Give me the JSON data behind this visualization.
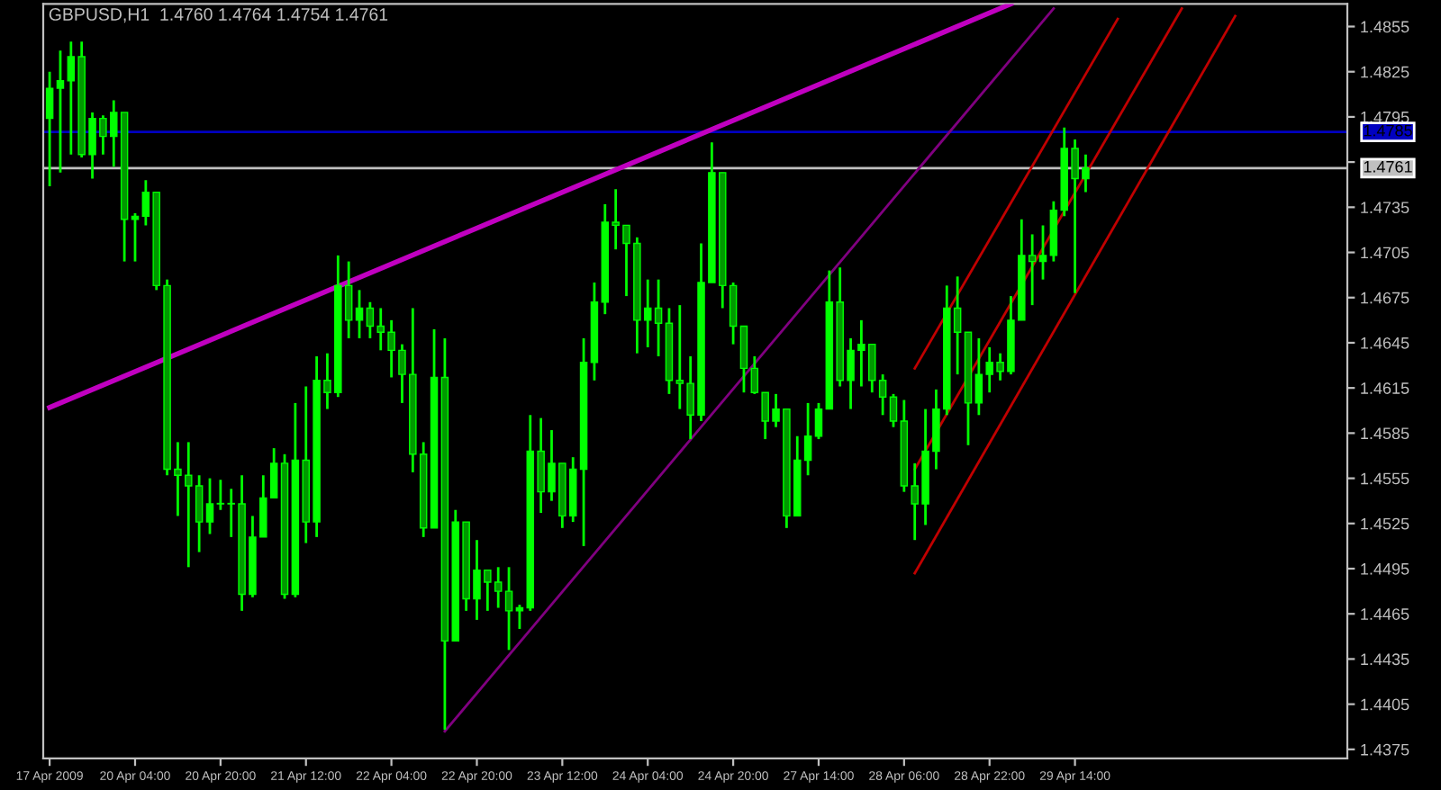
{
  "chart_data": {
    "type": "candlestick",
    "title": "GBPUSD,H1  1.4760 1.4764 1.4754 1.4761",
    "categories": [
      "17 Apr 2009",
      null,
      null,
      null,
      null,
      null,
      null,
      null,
      "20 Apr 04:00",
      null,
      null,
      null,
      null,
      null,
      null,
      null,
      "20 Apr 20:00",
      null,
      null,
      null,
      null,
      null,
      null,
      null,
      "21 Apr 12:00",
      null,
      null,
      null,
      null,
      null,
      null,
      null,
      "22 Apr 04:00",
      null,
      null,
      null,
      null,
      null,
      null,
      null,
      "22 Apr 20:00",
      null,
      null,
      null,
      null,
      null,
      null,
      null,
      "23 Apr 12:00",
      null,
      null,
      null,
      null,
      null,
      null,
      null,
      "24 Apr 04:00",
      null,
      null,
      null,
      null,
      null,
      null,
      null,
      "24 Apr 20:00",
      null,
      null,
      null,
      null,
      null,
      null,
      null,
      "27 Apr 14:00",
      null,
      null,
      null,
      null,
      null,
      null,
      null,
      "28 Apr 06:00",
      null,
      null,
      null,
      null,
      null,
      null,
      null,
      "28 Apr 22:00",
      null,
      null,
      null,
      null,
      null,
      null,
      null,
      "29 Apr 14:00",
      null,
      null,
      null,
      null,
      null,
      null,
      null,
      null,
      null,
      null,
      null,
      null,
      null,
      null,
      null,
      null,
      null,
      null,
      null,
      null,
      null,
      null,
      null,
      null,
      null
    ],
    "ylim": [
      1.4369,
      1.487
    ],
    "yticks": [
      {
        "value": 1.4375,
        "label": "1.4375"
      },
      {
        "value": 1.4405,
        "label": "1.4405"
      },
      {
        "value": 1.4435,
        "label": "1.4435"
      },
      {
        "value": 1.4465,
        "label": "1.4465"
      },
      {
        "value": 1.4495,
        "label": "1.4495"
      },
      {
        "value": 1.4525,
        "label": "1.4525"
      },
      {
        "value": 1.4555,
        "label": "1.4555"
      },
      {
        "value": 1.4585,
        "label": "1.4585"
      },
      {
        "value": 1.4615,
        "label": "1.4615"
      },
      {
        "value": 1.4645,
        "label": "1.4645"
      },
      {
        "value": 1.4675,
        "label": "1.4675"
      },
      {
        "value": 1.4705,
        "label": "1.4705"
      },
      {
        "value": 1.4735,
        "label": "1.4735"
      },
      {
        "value": 1.4765,
        "label": null
      },
      {
        "value": 1.4795,
        "label": "1.4795"
      },
      {
        "value": 1.4825,
        "label": "1.4825"
      },
      {
        "value": 1.4855,
        "label": "1.4855"
      }
    ],
    "grid": false,
    "legend": false,
    "ref_lines": [
      {
        "axis": "y",
        "value": 1.4785,
        "label": "1.4785",
        "color": "#0000c0"
      },
      {
        "axis": "y",
        "value": 1.4761,
        "label": "1.4761",
        "color": "#c0c0c0"
      }
    ],
    "series": [
      {
        "color": "#00ff00",
        "ohlc": [
          [
            1.4794,
            1.4825,
            1.4749,
            1.4814
          ],
          [
            1.4814,
            1.4839,
            1.4758,
            1.4819
          ],
          [
            1.4819,
            1.4845,
            1.477,
            1.4835
          ],
          [
            1.4835,
            1.4845,
            1.4768,
            1.477
          ],
          [
            1.477,
            1.4798,
            1.4754,
            1.4794
          ],
          [
            1.4794,
            1.4796,
            1.477,
            1.4782
          ],
          [
            1.4782,
            1.4806,
            1.4762,
            1.4798
          ],
          [
            1.4798,
            1.4798,
            1.4699,
            1.4727
          ],
          [
            1.4727,
            1.4731,
            1.4699,
            1.4729
          ],
          [
            1.4729,
            1.4753,
            1.4723,
            1.4745
          ],
          [
            1.4745,
            1.4745,
            1.468,
            1.4683
          ],
          [
            1.4683,
            1.4687,
            1.4557,
            1.4561
          ],
          [
            1.4561,
            1.4579,
            1.453,
            1.4557
          ],
          [
            1.4557,
            1.4579,
            1.4496,
            1.455
          ],
          [
            1.455,
            1.4557,
            1.4506,
            1.4526
          ],
          [
            1.4526,
            1.4555,
            1.4518,
            1.4538
          ],
          [
            1.4538,
            1.4554,
            1.4534,
            1.4538
          ],
          [
            1.4538,
            1.4548,
            1.4516,
            1.4538
          ],
          [
            1.4538,
            1.4557,
            1.4467,
            1.4478
          ],
          [
            1.4478,
            1.453,
            1.4476,
            1.4516
          ],
          [
            1.4516,
            1.4557,
            1.4516,
            1.4542
          ],
          [
            1.4542,
            1.4575,
            1.4542,
            1.4565
          ],
          [
            1.4565,
            1.4571,
            1.4475,
            1.4478
          ],
          [
            1.4478,
            1.4605,
            1.4476,
            1.4567
          ],
          [
            1.4567,
            1.4616,
            1.4512,
            1.4526
          ],
          [
            1.4526,
            1.4636,
            1.4516,
            1.462
          ],
          [
            1.462,
            1.4638,
            1.4601,
            1.4612
          ],
          [
            1.4612,
            1.4703,
            1.4609,
            1.4683
          ],
          [
            1.4683,
            1.4699,
            1.4648,
            1.466
          ],
          [
            1.466,
            1.468,
            1.4648,
            1.4668
          ],
          [
            1.4668,
            1.4672,
            1.4648,
            1.4656
          ],
          [
            1.4656,
            1.4668,
            1.464,
            1.4652
          ],
          [
            1.4652,
            1.466,
            1.4622,
            1.464
          ],
          [
            1.464,
            1.4644,
            1.4605,
            1.4624
          ],
          [
            1.4624,
            1.4668,
            1.4559,
            1.4571
          ],
          [
            1.4571,
            1.4579,
            1.4516,
            1.4522
          ],
          [
            1.4522,
            1.4654,
            1.4522,
            1.4622
          ],
          [
            1.4622,
            1.4648,
            1.4388,
            1.4447
          ],
          [
            1.4447,
            1.4534,
            1.4447,
            1.4526
          ],
          [
            1.4526,
            1.4526,
            1.4467,
            1.4475
          ],
          [
            1.4475,
            1.4514,
            1.4461,
            1.4494
          ],
          [
            1.4494,
            1.4494,
            1.4467,
            1.4486
          ],
          [
            1.4486,
            1.4496,
            1.4469,
            1.448
          ],
          [
            1.448,
            1.4496,
            1.4441,
            1.4467
          ],
          [
            1.4467,
            1.4471,
            1.4455,
            1.4469
          ],
          [
            1.4469,
            1.4597,
            1.4467,
            1.4573
          ],
          [
            1.4573,
            1.4595,
            1.4532,
            1.4546
          ],
          [
            1.4546,
            1.4587,
            1.454,
            1.4565
          ],
          [
            1.4565,
            1.4565,
            1.4522,
            1.453
          ],
          [
            1.453,
            1.4569,
            1.4526,
            1.4561
          ],
          [
            1.4561,
            1.4648,
            1.451,
            1.4632
          ],
          [
            1.4632,
            1.4685,
            1.462,
            1.4672
          ],
          [
            1.4672,
            1.4737,
            1.4664,
            1.4725
          ],
          [
            1.4725,
            1.4747,
            1.4707,
            1.4723
          ],
          [
            1.4723,
            1.4723,
            1.4676,
            1.4711
          ],
          [
            1.4711,
            1.4715,
            1.4638,
            1.466
          ],
          [
            1.466,
            1.4687,
            1.4642,
            1.4668
          ],
          [
            1.4668,
            1.4687,
            1.4636,
            1.4658
          ],
          [
            1.4658,
            1.4668,
            1.4611,
            1.462
          ],
          [
            1.462,
            1.467,
            1.4601,
            1.4618
          ],
          [
            1.4618,
            1.4636,
            1.4581,
            1.4597
          ],
          [
            1.4597,
            1.4711,
            1.4593,
            1.4685
          ],
          [
            1.4685,
            1.4778,
            1.4685,
            1.4758
          ],
          [
            1.4758,
            1.4758,
            1.4668,
            1.4683
          ],
          [
            1.4683,
            1.4685,
            1.4644,
            1.4656
          ],
          [
            1.4656,
            1.4656,
            1.4612,
            1.4628
          ],
          [
            1.4628,
            1.4636,
            1.4611,
            1.4612
          ],
          [
            1.4612,
            1.4612,
            1.4581,
            1.4593
          ],
          [
            1.4593,
            1.4611,
            1.4589,
            1.4601
          ],
          [
            1.4601,
            1.4601,
            1.4522,
            1.453
          ],
          [
            1.453,
            1.4583,
            1.453,
            1.4567
          ],
          [
            1.4567,
            1.4605,
            1.4557,
            1.4583
          ],
          [
            1.4583,
            1.4605,
            1.4581,
            1.4601
          ],
          [
            1.4601,
            1.4693,
            1.4601,
            1.4672
          ],
          [
            1.4672,
            1.4695,
            1.4616,
            1.462
          ],
          [
            1.462,
            1.4648,
            1.4601,
            1.464
          ],
          [
            1.464,
            1.466,
            1.4616,
            1.4644
          ],
          [
            1.4644,
            1.4644,
            1.4612,
            1.462
          ],
          [
            1.462,
            1.4624,
            1.4597,
            1.4609
          ],
          [
            1.4609,
            1.4611,
            1.4589,
            1.4593
          ],
          [
            1.4593,
            1.4607,
            1.4546,
            1.455
          ],
          [
            1.455,
            1.4565,
            1.4514,
            1.4538
          ],
          [
            1.4538,
            1.4601,
            1.4524,
            1.4573
          ],
          [
            1.4573,
            1.4614,
            1.4561,
            1.4601
          ],
          [
            1.4601,
            1.4683,
            1.4597,
            1.4668
          ],
          [
            1.4668,
            1.4689,
            1.4624,
            1.4652
          ],
          [
            1.4652,
            1.4652,
            1.4577,
            1.4605
          ],
          [
            1.4605,
            1.4648,
            1.4597,
            1.4624
          ],
          [
            1.4624,
            1.4642,
            1.4612,
            1.4632
          ],
          [
            1.4632,
            1.4638,
            1.462,
            1.4626
          ],
          [
            1.4626,
            1.4676,
            1.4624,
            1.466
          ],
          [
            1.466,
            1.4727,
            1.466,
            1.4703
          ],
          [
            1.4703,
            1.4717,
            1.467,
            1.4699
          ],
          [
            1.4699,
            1.4723,
            1.4687,
            1.4703
          ],
          [
            1.4703,
            1.4739,
            1.4699,
            1.4733
          ],
          [
            1.4733,
            1.4788,
            1.4729,
            1.4774
          ],
          [
            1.4774,
            1.478,
            1.4678,
            1.4754
          ],
          [
            1.4754,
            1.477,
            1.4745,
            1.4761
          ],
          null,
          null,
          null,
          null,
          null,
          null,
          null,
          null,
          null,
          null,
          null,
          null,
          null,
          null,
          null,
          null,
          null,
          null,
          null,
          null,
          null,
          null,
          null,
          null
        ]
      },
      {
        "type": "line",
        "color": "#c000c0",
        "values": [
          1.4602,
          null,
          null,
          null,
          null,
          null,
          null,
          null,
          null,
          null,
          null,
          null,
          null,
          null,
          null,
          null,
          null,
          null,
          null,
          null,
          null,
          null,
          null,
          null,
          null,
          null,
          null,
          null,
          null,
          null,
          null,
          null,
          null,
          null,
          null,
          null,
          null,
          null,
          null,
          null,
          null,
          null,
          null,
          null,
          null,
          null,
          null,
          null,
          null,
          null,
          null,
          null,
          null,
          null,
          null,
          null,
          null,
          null,
          null,
          null,
          null,
          null,
          null,
          null,
          null,
          null,
          null,
          null,
          null,
          null,
          null,
          null,
          null,
          null,
          null,
          null,
          null,
          null,
          null,
          null,
          null,
          null,
          null,
          null,
          null,
          null,
          null,
          null,
          null,
          null,
          1.487,
          null,
          null,
          null,
          null,
          null,
          null,
          null,
          null,
          null,
          null,
          null,
          null,
          null,
          null,
          null,
          null,
          null,
          null,
          null,
          null,
          null,
          null,
          null,
          null,
          null,
          null,
          null,
          null,
          null,
          null,
          null
        ]
      },
      {
        "type": "line",
        "color": "#800080",
        "values": [
          null,
          null,
          null,
          null,
          null,
          null,
          null,
          null,
          null,
          null,
          null,
          null,
          null,
          null,
          null,
          null,
          null,
          null,
          null,
          null,
          null,
          null,
          null,
          null,
          null,
          null,
          null,
          null,
          null,
          null,
          null,
          null,
          null,
          null,
          null,
          null,
          null,
          1.4387,
          null,
          null,
          null,
          null,
          null,
          null,
          null,
          null,
          null,
          null,
          null,
          null,
          null,
          null,
          null,
          null,
          null,
          null,
          null,
          null,
          null,
          null,
          null,
          null,
          null,
          null,
          null,
          null,
          null,
          null,
          null,
          null,
          null,
          null,
          null,
          null,
          null,
          null,
          null,
          null,
          null,
          null,
          null,
          null,
          null,
          null,
          null,
          null,
          null,
          null,
          null,
          null,
          null,
          null,
          null,
          null,
          1.4867,
          null,
          null,
          null,
          null,
          null,
          null,
          null,
          null,
          null,
          null,
          null,
          null,
          null,
          null,
          null,
          null,
          null,
          null,
          null,
          null,
          null,
          null,
          null,
          null,
          null,
          null,
          null
        ]
      },
      {
        "type": "line",
        "color": "#c00000",
        "values": [
          null,
          null,
          null,
          null,
          null,
          null,
          null,
          null,
          null,
          null,
          null,
          null,
          null,
          null,
          null,
          null,
          null,
          null,
          null,
          null,
          null,
          null,
          null,
          null,
          null,
          null,
          null,
          null,
          null,
          null,
          null,
          null,
          null,
          null,
          null,
          null,
          null,
          null,
          null,
          null,
          null,
          null,
          null,
          null,
          null,
          null,
          null,
          null,
          null,
          null,
          null,
          null,
          null,
          null,
          null,
          null,
          null,
          null,
          null,
          null,
          null,
          null,
          null,
          null,
          null,
          null,
          null,
          null,
          null,
          null,
          null,
          null,
          null,
          null,
          null,
          null,
          null,
          null,
          null,
          null,
          null,
          1.4628,
          null,
          null,
          null,
          null,
          null,
          null,
          null,
          null,
          null,
          null,
          null,
          null,
          null,
          null,
          null,
          null,
          null,
          null,
          1.486,
          null,
          null,
          null,
          null,
          null,
          null,
          null,
          null,
          null,
          null,
          null,
          null,
          null,
          null,
          null,
          null,
          null,
          null,
          null,
          null,
          null
        ]
      },
      {
        "type": "line",
        "color": "#c00000",
        "values": [
          null,
          null,
          null,
          null,
          null,
          null,
          null,
          null,
          null,
          null,
          null,
          null,
          null,
          null,
          null,
          null,
          null,
          null,
          null,
          null,
          null,
          null,
          null,
          null,
          null,
          null,
          null,
          null,
          null,
          null,
          null,
          null,
          null,
          null,
          null,
          null,
          null,
          null,
          null,
          null,
          null,
          null,
          null,
          null,
          null,
          null,
          null,
          null,
          null,
          null,
          null,
          null,
          null,
          null,
          null,
          null,
          null,
          null,
          null,
          null,
          null,
          null,
          null,
          null,
          null,
          null,
          null,
          null,
          null,
          null,
          null,
          null,
          null,
          null,
          null,
          null,
          null,
          null,
          null,
          null,
          null,
          1.4561,
          null,
          null,
          null,
          null,
          null,
          null,
          null,
          null,
          null,
          null,
          null,
          null,
          null,
          null,
          null,
          null,
          null,
          null,
          null,
          null,
          null,
          null,
          null,
          null,
          1.4867,
          null,
          null,
          null,
          null,
          null,
          null,
          null,
          null,
          null,
          null,
          null,
          null,
          null,
          null,
          null
        ]
      },
      {
        "type": "line",
        "color": "#c00000",
        "values": [
          null,
          null,
          null,
          null,
          null,
          null,
          null,
          null,
          null,
          null,
          null,
          null,
          null,
          null,
          null,
          null,
          null,
          null,
          null,
          null,
          null,
          null,
          null,
          null,
          null,
          null,
          null,
          null,
          null,
          null,
          null,
          null,
          null,
          null,
          null,
          null,
          null,
          null,
          null,
          null,
          null,
          null,
          null,
          null,
          null,
          null,
          null,
          null,
          null,
          null,
          null,
          null,
          null,
          null,
          null,
          null,
          null,
          null,
          null,
          null,
          null,
          null,
          null,
          null,
          null,
          null,
          null,
          null,
          null,
          null,
          null,
          null,
          null,
          null,
          null,
          null,
          null,
          null,
          null,
          null,
          null,
          1.4492,
          null,
          null,
          null,
          null,
          null,
          null,
          null,
          null,
          null,
          null,
          null,
          null,
          null,
          null,
          null,
          null,
          null,
          null,
          null,
          null,
          null,
          null,
          null,
          null,
          null,
          null,
          null,
          null,
          null,
          1.4862,
          null,
          null,
          null,
          null,
          null,
          null,
          null,
          null,
          null,
          null
        ]
      }
    ]
  }
}
